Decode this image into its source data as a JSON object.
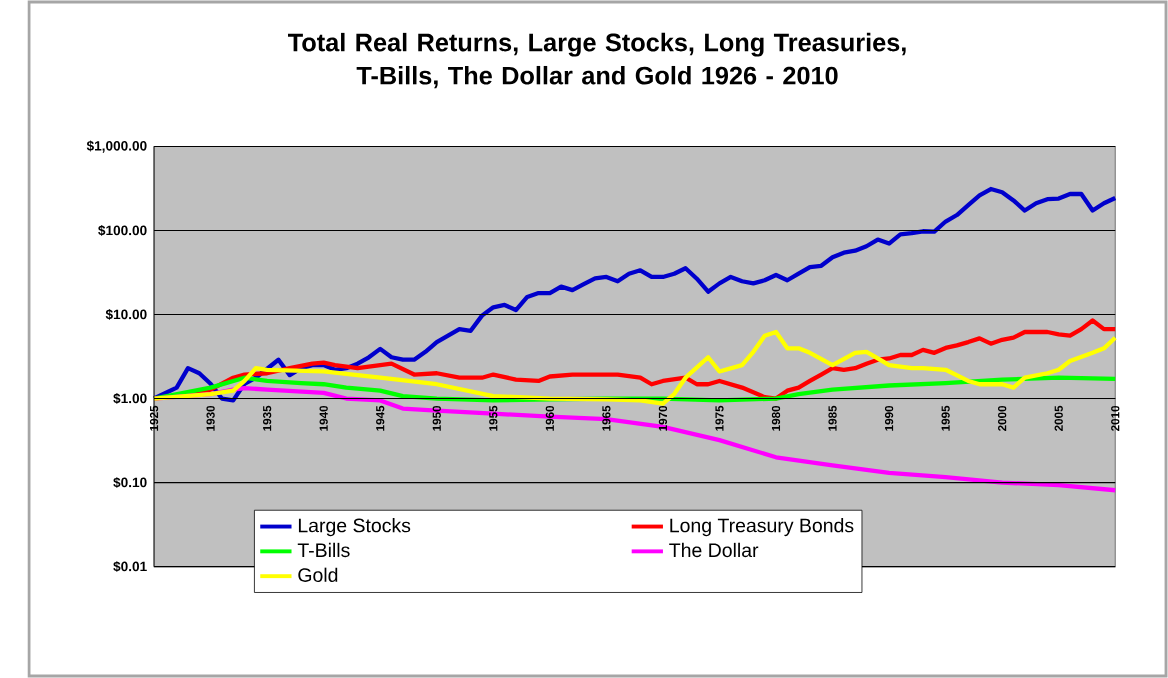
{
  "chart_data": {
    "type": "line",
    "title": "Total Real Returns, Large Stocks, Long Treasuries, T-Bills, The Dollar and Gold 1926 - 2010",
    "xlim": [
      1925,
      2010
    ],
    "xticks": [
      1925,
      1930,
      1935,
      1940,
      1945,
      1950,
      1955,
      1960,
      1965,
      1970,
      1975,
      1980,
      1985,
      1990,
      1995,
      2000,
      2005,
      2010
    ],
    "ylim": [
      0.01,
      1000
    ],
    "log": "y",
    "grid": "y",
    "legend": "bottom",
    "yticks": [
      {
        "value": 1000,
        "label": "$1,000.00"
      },
      {
        "value": 100,
        "label": "$100.00"
      },
      {
        "value": 10,
        "label": "$10.00"
      },
      {
        "value": 1,
        "label": "$1.00"
      },
      {
        "value": 0.1,
        "label": "$0.10"
      },
      {
        "value": 0.01,
        "label": "$0.01"
      }
    ],
    "series": [
      {
        "name": "Large Stocks",
        "color": "#0000cc",
        "x": [
          1925,
          1927,
          1928,
          1929,
          1930,
          1931,
          1932,
          1933,
          1934,
          1936,
          1937,
          1938,
          1939,
          1940,
          1941,
          1942,
          1943,
          1944,
          1945,
          1946,
          1947,
          1948,
          1949,
          1950,
          1951,
          1952,
          1953,
          1954,
          1955,
          1956,
          1957,
          1958,
          1959,
          1960,
          1961,
          1962,
          1963,
          1964,
          1965,
          1966,
          1967,
          1968,
          1969,
          1970,
          1971,
          1972,
          1973,
          1974,
          1975,
          1976,
          1977,
          1978,
          1979,
          1980,
          1981,
          1982,
          1983,
          1984,
          1985,
          1986,
          1987,
          1988,
          1989,
          1990,
          1991,
          1992,
          1993,
          1994,
          1995,
          1996,
          1997,
          1998,
          1999,
          2000,
          2001,
          2002,
          2003,
          2004,
          2005,
          2006,
          2007,
          2008,
          2009,
          2010
        ],
        "values": [
          1.0,
          1.35,
          2.3,
          2.0,
          1.5,
          1.0,
          0.95,
          1.5,
          1.77,
          2.9,
          1.9,
          2.3,
          2.5,
          2.5,
          2.2,
          2.3,
          2.6,
          3.1,
          3.9,
          3.1,
          2.9,
          2.9,
          3.6,
          4.7,
          5.6,
          6.7,
          6.4,
          9.7,
          12.2,
          13,
          11.3,
          16.2,
          18,
          18,
          21.5,
          19.5,
          23,
          27,
          28,
          24.9,
          30.6,
          33.6,
          28,
          28,
          30.6,
          35.6,
          26.7,
          18.7,
          23.5,
          28,
          24.9,
          23.5,
          25.6,
          29.6,
          25.6,
          30.6,
          36.7,
          38,
          48,
          54.5,
          57.5,
          65,
          78,
          70,
          90,
          93,
          98,
          97,
          128,
          153,
          201,
          262,
          312,
          286,
          228,
          173,
          211,
          236,
          240,
          272,
          272,
          173,
          211,
          244
        ]
      },
      {
        "name": "Long Treasury Bonds",
        "color": "#ff0000",
        "x": [
          1925,
          1928,
          1930,
          1932,
          1933,
          1935,
          1937,
          1939,
          1940,
          1941,
          1943,
          1945,
          1946,
          1948,
          1950,
          1952,
          1954,
          1955,
          1957,
          1959,
          1960,
          1962,
          1965,
          1966,
          1968,
          1969,
          1970,
          1972,
          1973,
          1974,
          1975,
          1977,
          1979,
          1980,
          1981,
          1982,
          1983,
          1984,
          1985,
          1986,
          1987,
          1988,
          1989,
          1990,
          1991,
          1992,
          1993,
          1994,
          1995,
          1996,
          1997,
          1998,
          1999,
          2000,
          2001,
          2002,
          2003,
          2004,
          2005,
          2006,
          2007,
          2008,
          2009,
          2010
        ],
        "values": [
          1.0,
          1.13,
          1.28,
          1.77,
          1.93,
          2.0,
          2.3,
          2.6,
          2.67,
          2.5,
          2.3,
          2.5,
          2.6,
          1.93,
          2.0,
          1.77,
          1.77,
          1.93,
          1.68,
          1.62,
          1.83,
          1.93,
          1.93,
          1.93,
          1.77,
          1.48,
          1.62,
          1.77,
          1.48,
          1.48,
          1.62,
          1.35,
          1.04,
          1.0,
          1.24,
          1.35,
          1.62,
          1.93,
          2.3,
          2.2,
          2.3,
          2.6,
          2.9,
          3.0,
          3.3,
          3.3,
          3.8,
          3.5,
          4.0,
          4.3,
          4.7,
          5.2,
          4.5,
          5.0,
          5.3,
          6.2,
          6.2,
          6.2,
          5.8,
          5.6,
          6.7,
          8.5,
          6.7,
          6.7
        ]
      },
      {
        "name": "T-Bills",
        "color": "#00ff00",
        "x": [
          1925,
          1930,
          1933,
          1935,
          1938,
          1940,
          1942,
          1945,
          1947,
          1950,
          1955,
          1960,
          1965,
          1970,
          1975,
          1980,
          1982,
          1985,
          1990,
          1995,
          2000,
          2005,
          2010
        ],
        "values": [
          1.0,
          1.35,
          1.77,
          1.62,
          1.53,
          1.48,
          1.35,
          1.24,
          1.07,
          1.0,
          0.95,
          0.98,
          1.0,
          1.0,
          0.95,
          1.0,
          1.13,
          1.28,
          1.43,
          1.53,
          1.68,
          1.77,
          1.71
        ]
      },
      {
        "name": "The Dollar",
        "color": "#ff00ff",
        "x": [
          1925,
          1930,
          1932,
          1933,
          1935,
          1940,
          1942,
          1945,
          1947,
          1950,
          1955,
          1960,
          1965,
          1970,
          1975,
          1980,
          1985,
          1990,
          1995,
          2000,
          2005,
          2010
        ],
        "values": [
          1.0,
          1.13,
          1.28,
          1.33,
          1.28,
          1.17,
          1.0,
          0.95,
          0.76,
          0.72,
          0.66,
          0.61,
          0.57,
          0.46,
          0.32,
          0.2,
          0.16,
          0.13,
          0.116,
          0.1,
          0.093,
          0.081
        ]
      },
      {
        "name": "Gold",
        "color": "#ffff00",
        "x": [
          1925,
          1930,
          1932,
          1933,
          1934,
          1935,
          1940,
          1945,
          1950,
          1955,
          1960,
          1965,
          1968,
          1970,
          1971,
          1972,
          1974,
          1975,
          1977,
          1978,
          1979,
          1980,
          1981,
          1982,
          1983,
          1985,
          1987,
          1988,
          1989,
          1990,
          1992,
          1993,
          1995,
          1997,
          1998,
          2000,
          2001,
          2002,
          2004,
          2005,
          2006,
          2008,
          2009,
          2010
        ],
        "values": [
          1.0,
          1.13,
          1.24,
          1.62,
          2.3,
          2.2,
          2.1,
          1.77,
          1.48,
          1.07,
          1.0,
          0.98,
          0.95,
          0.87,
          1.13,
          1.77,
          3.1,
          2.1,
          2.5,
          3.6,
          5.6,
          6.2,
          3.96,
          3.96,
          3.5,
          2.5,
          3.5,
          3.6,
          3.0,
          2.5,
          2.3,
          2.3,
          2.2,
          1.62,
          1.48,
          1.48,
          1.35,
          1.77,
          2.0,
          2.2,
          2.8,
          3.5,
          3.96,
          5.3
        ]
      }
    ]
  }
}
